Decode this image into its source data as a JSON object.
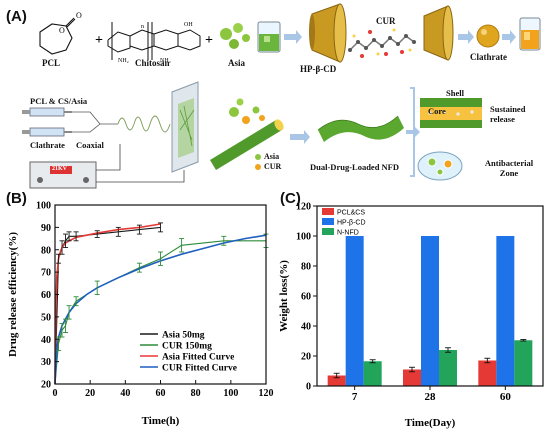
{
  "panels": {
    "a": "(A)",
    "b": "(B)",
    "c": "(C)"
  },
  "scheme": {
    "pcl": "PCL",
    "chitosan": "Chitosan",
    "asia": "Asia",
    "hpbcd": "HP-β-CD",
    "cur": "CUR",
    "clathrate": "Clathrate",
    "plus1": "+",
    "plus2": "+",
    "feed_top": "PCL & CS/Asia",
    "feed_bottom": "Clathrate",
    "coaxial": "Coaxial",
    "voltage": "21KV",
    "fiber_asia": "Asia",
    "fiber_cur": "CUR",
    "product": "Dual-Drug-Loaded NFD",
    "shell": "Shell",
    "core": "Core",
    "sustained": "Sustained release",
    "antibacterial": "Antibacterial Zone",
    "chem_n": "n",
    "chem_nh2": "NH₂",
    "chem_oh": "OH"
  },
  "colors": {
    "asia_green": "#8cc63f",
    "cur_orange": "#f2a31b",
    "gold": "#c99a22",
    "fiber_green": "#4f9a2a",
    "arrow_blue": "#a9c6e6"
  },
  "chart_data": [
    {
      "type": "line",
      "xlabel": "Time(h)",
      "ylabel": "Drug release efficiency(%)",
      "xlim": [
        0,
        120
      ],
      "ylim": [
        20,
        100
      ],
      "xticks": [
        "0",
        "20",
        "40",
        "60",
        "80",
        "100",
        "120"
      ],
      "yticks": [
        "20",
        "30",
        "40",
        "50",
        "60",
        "70",
        "80",
        "90",
        "100"
      ],
      "legend_position": "bottom-right",
      "series": [
        {
          "name": "Asia 50mg",
          "color": "#1a1a1a",
          "error_bars": true,
          "x": [
            0,
            2,
            4,
            6,
            8,
            12,
            24,
            36,
            48,
            60
          ],
          "y": [
            20,
            76,
            81,
            84,
            86,
            86,
            87,
            88,
            89,
            90
          ],
          "err": [
            0,
            2,
            3,
            3,
            2,
            2,
            1.5,
            2,
            2,
            2
          ]
        },
        {
          "name": "CUR  150mg",
          "color": "#2e8b3a",
          "error_bars": true,
          "x": [
            0,
            2,
            4,
            6,
            8,
            12,
            24,
            48,
            60,
            72,
            96,
            120
          ],
          "y": [
            20,
            38,
            44,
            46,
            52,
            57,
            63,
            72,
            76,
            82,
            84,
            84
          ],
          "err": [
            0,
            3,
            3,
            3,
            3,
            2,
            3,
            2,
            3,
            3,
            2,
            3
          ]
        },
        {
          "name": "Asia Fitted Curve",
          "color": "#e53935",
          "fitted": true,
          "x": [
            0,
            0.5,
            1,
            2,
            3,
            4,
            6,
            8,
            12,
            18,
            24,
            36,
            48,
            60
          ],
          "y": [
            20,
            55,
            68,
            76,
            79,
            81,
            83,
            84,
            85.5,
            86.5,
            87.5,
            89,
            90,
            91.5
          ]
        },
        {
          "name": "CUR  Fitted Curve",
          "color": "#1f5fbf",
          "fitted": true,
          "x": [
            0,
            1,
            2,
            4,
            6,
            8,
            12,
            18,
            24,
            36,
            48,
            60,
            72,
            84,
            96,
            108,
            120
          ],
          "y": [
            20,
            36,
            41,
            46,
            49,
            52,
            56,
            60,
            63,
            67.5,
            71.5,
            75,
            78,
            80.5,
            83,
            85,
            86.5
          ]
        }
      ]
    },
    {
      "type": "bar",
      "xlabel": "Time(Day)",
      "ylabel": "Weight loss(%)",
      "ylim": [
        0,
        120
      ],
      "yticks": [
        "0",
        "20",
        "40",
        "60",
        "80",
        "100",
        "120"
      ],
      "legend_position": "top-left",
      "categories": [
        "7",
        "28",
        "60"
      ],
      "series": [
        {
          "name": "PCL&CS",
          "color": "#e53935",
          "values": [
            7,
            11,
            17
          ],
          "err": [
            1.5,
            1.5,
            1.5
          ]
        },
        {
          "name": "HP-β-CD",
          "color": "#1e73e8",
          "values": [
            100,
            100,
            100
          ],
          "err": [
            0,
            0,
            0
          ]
        },
        {
          "name": "N-NFD",
          "color": "#22a55b",
          "values": [
            16.5,
            24,
            30.5
          ],
          "err": [
            1,
            1.5,
            0.5
          ]
        }
      ]
    }
  ]
}
